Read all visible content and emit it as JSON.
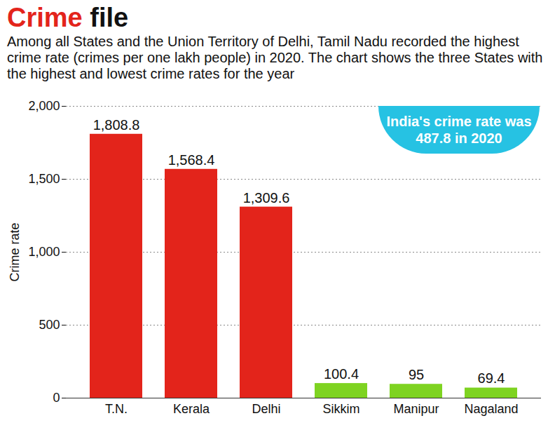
{
  "chart_data": {
    "type": "bar",
    "title": "Crime file",
    "subtitle": "Among all States and the Union Territory of Delhi, Tamil Nadu recorded the highest crime rate (crimes per one lakh people) in 2020. The chart shows the three States with the highest and lowest crime rates for the year",
    "annotation": "India's crime rate was 487.8 in 2020",
    "y_label": "Crime rate",
    "categories": [
      "T.N.",
      "Kerala",
      "Delhi",
      "Sikkim",
      "Manipur",
      "Nagaland"
    ],
    "values": [
      1808.8,
      1568.4,
      1309.6,
      100.4,
      95,
      69.4
    ],
    "value_labels": [
      "1,808.8",
      "1,568.4",
      "1,309.6",
      "100.4",
      "95",
      "69.4"
    ],
    "colors": [
      "#e3241b",
      "#e3241b",
      "#e3241b",
      "#7ed321",
      "#7ed321",
      "#7ed321"
    ],
    "ylim": [
      0,
      2000
    ],
    "yticks": [
      0,
      500,
      {
        "value": 1000,
        "label": "1,000"
      },
      {
        "value": 1500,
        "label": "1,500"
      },
      {
        "value": 2000,
        "label": "2,000"
      }
    ],
    "grid": true,
    "data_labels": true
  }
}
